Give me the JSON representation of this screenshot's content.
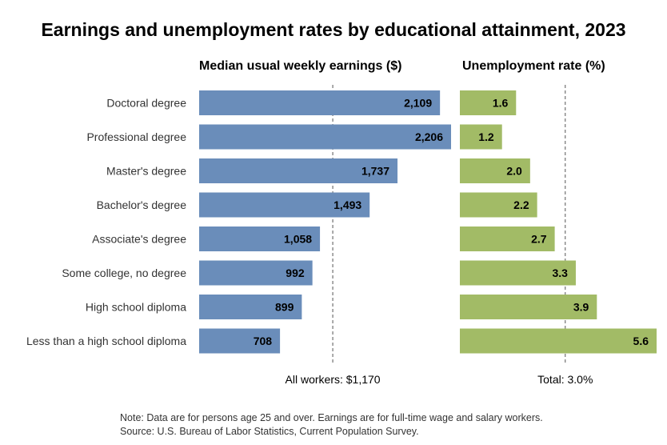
{
  "title": "Earnings and unemployment rates by educational attainment, 2023",
  "colors": {
    "earnings_bar": "#6A8DBA",
    "unemployment_bar": "#A2BB66",
    "ref_line": "#555555"
  },
  "note": "Note: Data are for persons age 25 and over. Earnings are for full-time wage and salary workers.",
  "source": "Source: U.S. Bureau of Labor Statistics, Current Population Survey.",
  "chart_data": [
    {
      "type": "bar",
      "orientation": "horizontal",
      "title": "Median usual weekly earnings ($)",
      "categories": [
        "Doctoral degree",
        "Professional degree",
        "Master's degree",
        "Bachelor's degree",
        "Associate's degree",
        "Some college, no degree",
        "High school diploma",
        "Less than a high school diploma"
      ],
      "values": [
        2109,
        2206,
        1737,
        1493,
        1058,
        992,
        899,
        708
      ],
      "value_labels": [
        "2,109",
        "2,206",
        "1,737",
        "1,493",
        "1,058",
        "992",
        "899",
        "708"
      ],
      "reference": {
        "value": 1170,
        "label": "All workers: $1,170"
      },
      "xlim": [
        0,
        2206
      ]
    },
    {
      "type": "bar",
      "orientation": "horizontal",
      "title": "Unemployment rate (%)",
      "categories": [
        "Doctoral degree",
        "Professional degree",
        "Master's degree",
        "Bachelor's degree",
        "Associate's degree",
        "Some college, no degree",
        "High school diploma",
        "Less than a high school diploma"
      ],
      "values": [
        1.6,
        1.2,
        2.0,
        2.2,
        2.7,
        3.3,
        3.9,
        5.6
      ],
      "value_labels": [
        "1.6",
        "1.2",
        "2.0",
        "2.2",
        "2.7",
        "3.3",
        "3.9",
        "5.6"
      ],
      "reference": {
        "value": 3.0,
        "label": "Total: 3.0%"
      },
      "xlim": [
        0,
        5.6
      ]
    }
  ]
}
